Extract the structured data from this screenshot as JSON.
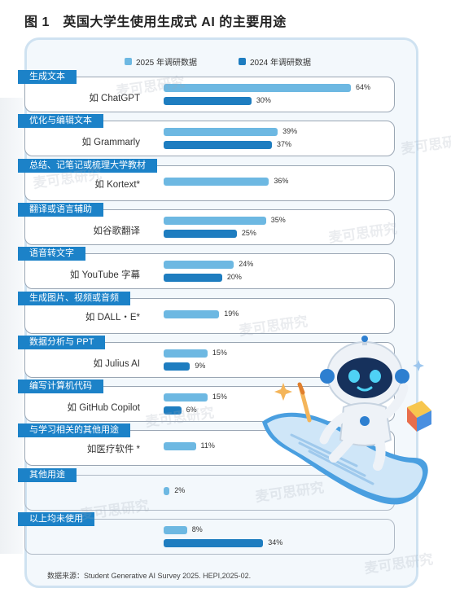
{
  "figure": {
    "title": "图 1　英国大学生使用生成式 AI 的主要用途",
    "source": "数据来源：Student Generative AI Survey 2025. HEPI,2025-02.",
    "watermark": "麦可思研究"
  },
  "colors": {
    "series_2025": "#6db8e2",
    "series_2024": "#1e7dc0",
    "label_bg": "#1c82c8",
    "panel_bg": "#f3f8fc"
  },
  "chart_data": {
    "type": "bar",
    "orientation": "horizontal",
    "title": "英国大学生使用生成式 AI 的主要用途",
    "xlim": [
      0,
      70
    ],
    "unit": "%",
    "legend": {
      "position": "top",
      "entries": [
        "2025 年调研数据",
        "2024 年调研数据"
      ]
    },
    "categories": [
      "生成文本",
      "优化与编辑文本",
      "总结、记笔记或梳理大学教材",
      "翻译或语言辅助",
      "语音转文字",
      "生成图片、视频或音频",
      "数据分析与 PPT",
      "编写计算机代码",
      "与学习相关的其他用途",
      "其他用途",
      "以上均未使用"
    ],
    "examples": [
      "如 ChatGPT",
      "如 Grammarly",
      "如 Kortext*",
      "如谷歌翻译",
      "如 YouTube 字幕",
      "如 DALL・E*",
      "如 Julius AI",
      "如 GitHub Copilot",
      "如医疗软件 *",
      "",
      ""
    ],
    "series": [
      {
        "name": "2025 年调研数据",
        "values": [
          64,
          39,
          36,
          35,
          24,
          19,
          15,
          15,
          11,
          2,
          8
        ]
      },
      {
        "name": "2024 年调研数据",
        "values": [
          30,
          37,
          null,
          25,
          20,
          null,
          9,
          6,
          null,
          null,
          34
        ]
      }
    ]
  }
}
